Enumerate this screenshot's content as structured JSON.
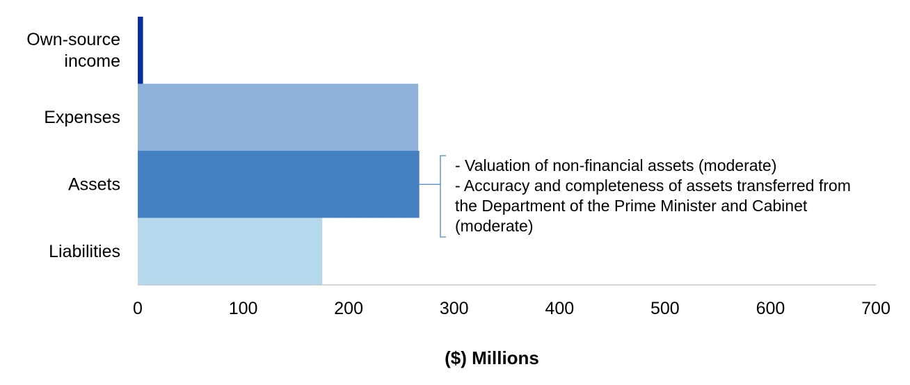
{
  "chart_data": {
    "type": "bar",
    "orientation": "horizontal",
    "categories": [
      "Own-source income",
      "Expenses",
      "Assets",
      "Liabilities"
    ],
    "category_lines": [
      [
        "Own-source",
        "income"
      ],
      [
        "Expenses"
      ],
      [
        "Assets"
      ],
      [
        "Liabilities"
      ]
    ],
    "values": [
      5,
      266,
      267,
      175
    ],
    "colors": [
      "#0b2e9e",
      "#8fb1d9",
      "#4580c2",
      "#b5d8ec"
    ],
    "xlabel": "($) Millions",
    "ylabel": "",
    "xlim": [
      0,
      700
    ],
    "x_ticks": [
      "0",
      "100",
      "200",
      "300",
      "400",
      "500",
      "600",
      "700"
    ],
    "grid": false,
    "annotation": {
      "category": "Assets",
      "lines": [
        "- Valuation of non-financial assets (moderate)",
        "- Accuracy and completeness of assets transferred from",
        "the Department of the Prime Minister and Cabinet",
        "(moderate)"
      ],
      "bracket_color": "#4a86c0"
    },
    "axis_color": "#c8c8c8"
  }
}
